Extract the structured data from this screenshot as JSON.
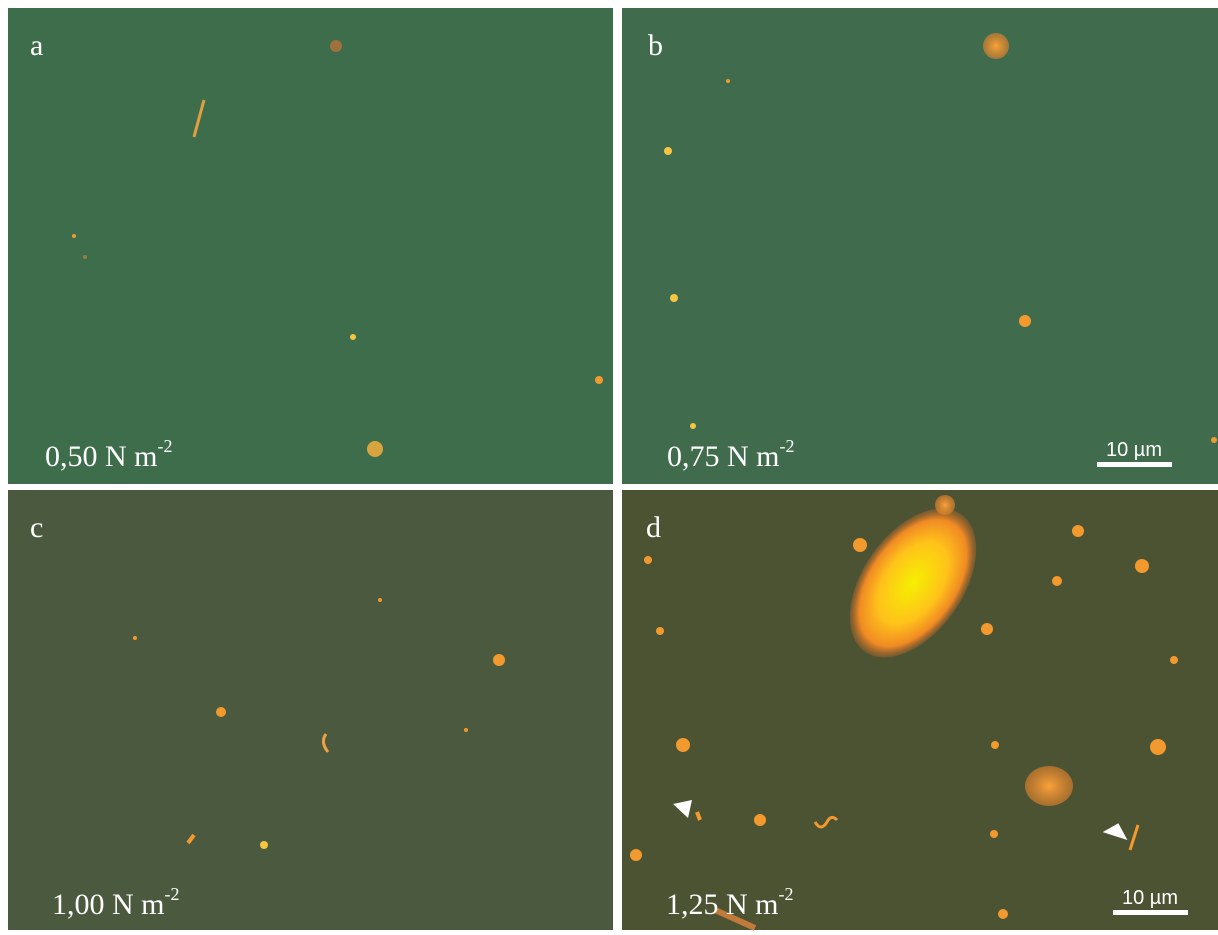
{
  "panels": [
    {
      "letter": "a",
      "label": "0,50 N m",
      "exponent": "-2"
    },
    {
      "letter": "b",
      "label": "0,75 N m",
      "exponent": "-2",
      "scale_bar": "10 µm"
    },
    {
      "letter": "c",
      "label": "1,00 N m",
      "exponent": "-2"
    },
    {
      "letter": "d",
      "label": "1,25 N m",
      "exponent": "-2",
      "scale_bar": "10 µm"
    }
  ]
}
